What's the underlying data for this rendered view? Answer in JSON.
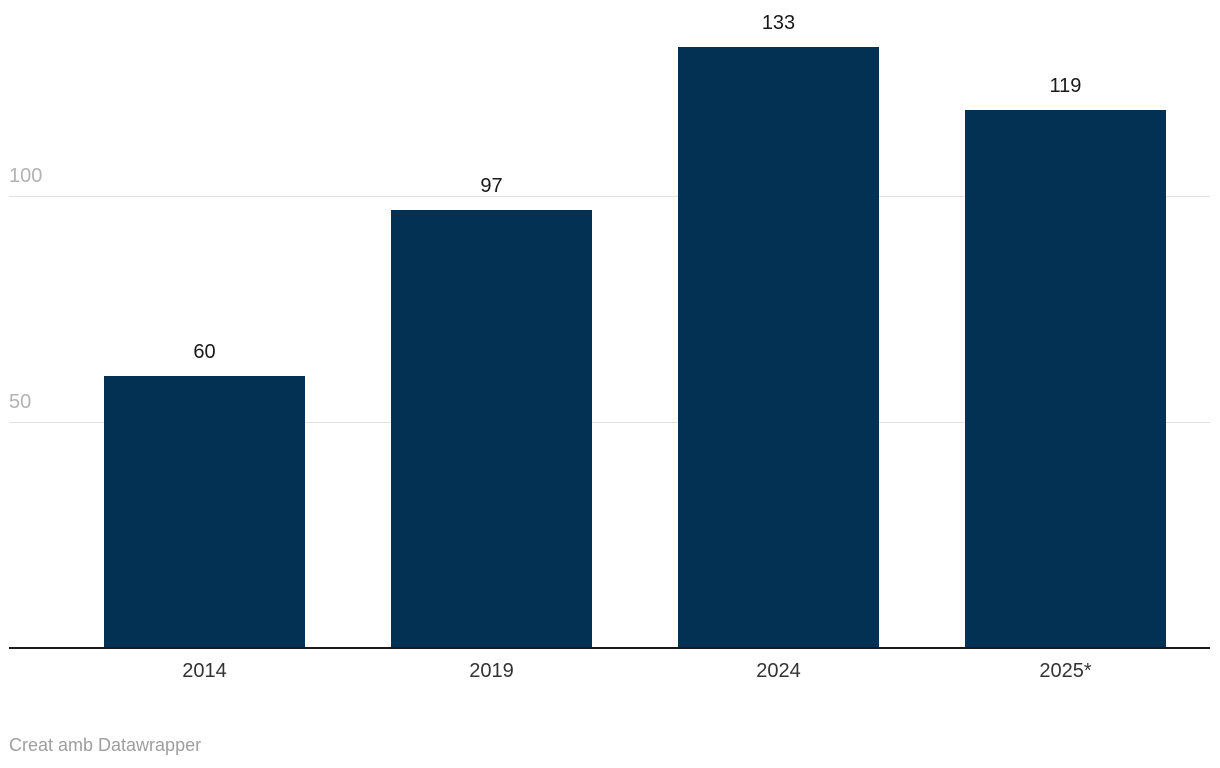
{
  "chart_data": {
    "type": "bar",
    "title": "",
    "xlabel": "",
    "ylabel": "",
    "categories": [
      "2014",
      "2019",
      "2024",
      "2025*"
    ],
    "values": [
      60,
      97,
      133,
      119
    ],
    "data_labels": [
      "60",
      "97",
      "133",
      "119"
    ],
    "yticks": [
      50,
      100
    ],
    "ytick_labels": [
      "50",
      "100"
    ],
    "ylim": [
      0,
      143
    ],
    "grid": "horizontal-only",
    "legend": "none",
    "bar_color": "#033153"
  },
  "attribution": {
    "text": "Creat amb Datawrapper"
  },
  "colors": {
    "background": "#ffffff",
    "bar": "#033153",
    "gridline": "#e2e2e2",
    "axis_line": "#1a1a1a",
    "tick_label": "#b3b3b3",
    "value_label": "#1a1a1a",
    "category_label": "#333333",
    "attribution_text": "#9e9e9e"
  }
}
